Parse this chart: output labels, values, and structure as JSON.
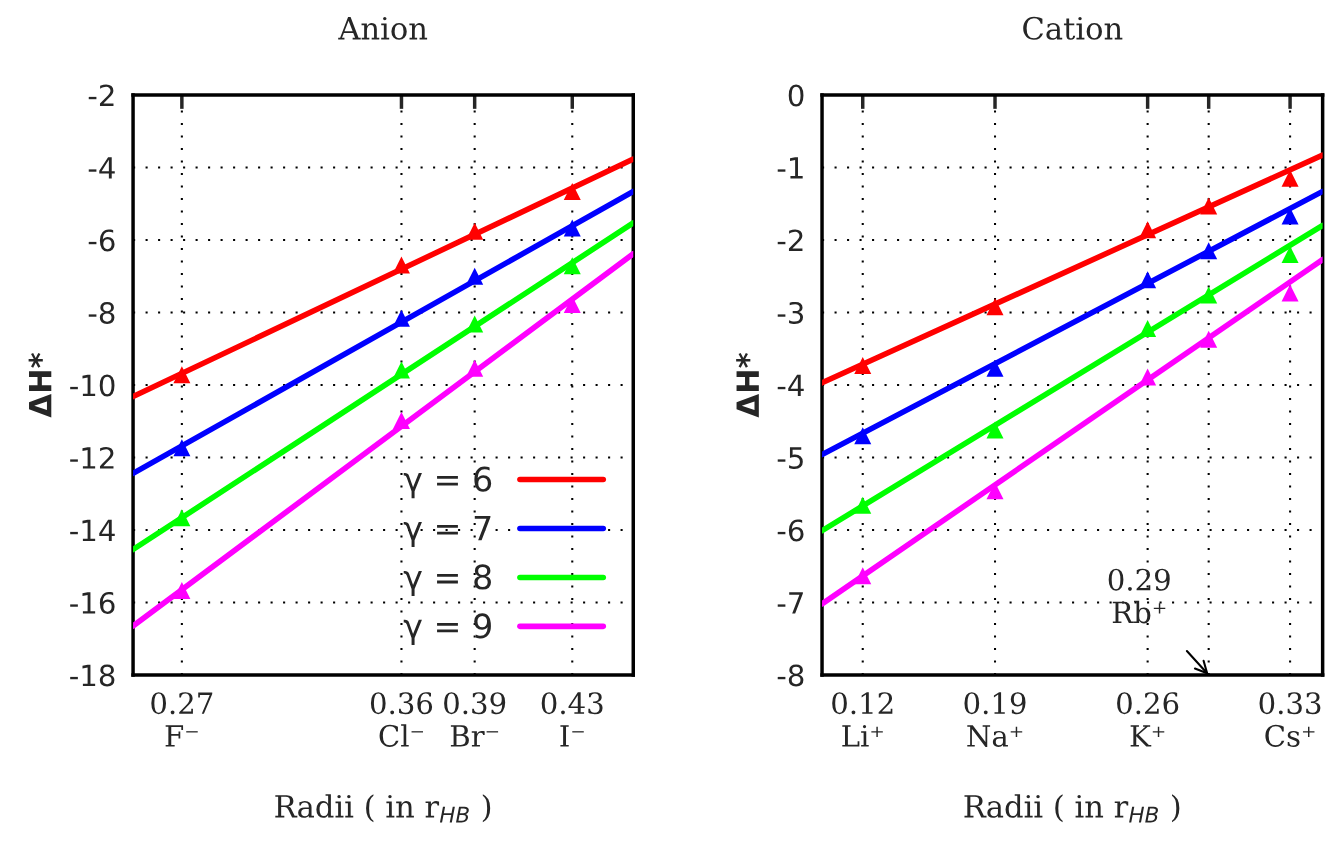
{
  "chart_data": [
    {
      "type": "line",
      "title": "Anion",
      "xlabel": "Radii ( in r$_{HB}$ )",
      "ylabel": "ΔH*",
      "xlim": [
        0.25,
        0.455
      ],
      "xticks": [
        {
          "value": 0.27,
          "label": "0.27\nF⁻"
        },
        {
          "value": 0.36,
          "label": "0.36\nCl⁻"
        },
        {
          "value": 0.39,
          "label": "0.39\nBr⁻"
        },
        {
          "value": 0.43,
          "label": "0.43\nI⁻"
        }
      ],
      "ylim": [
        -18,
        -2
      ],
      "yticks": [
        {
          "value": -18,
          "label": "-18"
        },
        {
          "value": -16,
          "label": "-16"
        },
        {
          "value": -14,
          "label": "-14"
        },
        {
          "value": -12,
          "label": "-12"
        },
        {
          "value": -10,
          "label": "-10"
        },
        {
          "value": -8,
          "label": "-8"
        },
        {
          "value": -6,
          "label": "-6"
        },
        {
          "value": -4,
          "label": "-4"
        },
        {
          "value": -2,
          "label": "-2"
        }
      ],
      "grid": true,
      "legend": "bottom right",
      "series": [
        {
          "type": "scatter",
          "marker": "triangle",
          "color": "#ff0000",
          "x": [
            0.27,
            0.36,
            0.39,
            0.43
          ],
          "values": [
            -9.72,
            -6.69,
            -5.76,
            -4.66
          ]
        },
        {
          "type": "scatter",
          "marker": "triangle",
          "color": "#0000ff",
          "x": [
            0.27,
            0.36,
            0.39,
            0.43
          ],
          "values": [
            -11.73,
            -8.16,
            -7.0,
            -5.67
          ]
        },
        {
          "type": "scatter",
          "marker": "triangle",
          "color": "#00ff00",
          "x": [
            0.27,
            0.36,
            0.39,
            0.43
          ],
          "values": [
            -13.66,
            -9.59,
            -8.32,
            -6.71
          ]
        },
        {
          "type": "scatter",
          "marker": "triangle",
          "color": "#ff00ff",
          "x": [
            0.27,
            0.36,
            0.39,
            0.43
          ],
          "values": [
            -15.67,
            -10.98,
            -9.54,
            -7.78
          ]
        },
        {
          "type": "line",
          "name": "γ = 6",
          "color": "#ff0000",
          "x": [
            0.25,
            0.455
          ],
          "values": [
            -10.32,
            -3.77
          ]
        },
        {
          "type": "line",
          "name": "γ = 7",
          "color": "#0000ff",
          "x": [
            0.25,
            0.455
          ],
          "values": [
            -12.44,
            -4.66
          ]
        },
        {
          "type": "line",
          "name": "γ = 8",
          "color": "#00ff00",
          "x": [
            0.25,
            0.455
          ],
          "values": [
            -14.54,
            -5.53
          ]
        },
        {
          "type": "line",
          "name": "γ = 9",
          "color": "#ff00ff",
          "x": [
            0.25,
            0.455
          ],
          "values": [
            -16.65,
            -6.38
          ]
        }
      ]
    },
    {
      "type": "line",
      "title": "Cation",
      "xlabel": "Radii ( in r$_{HB}$ )",
      "ylabel": "ΔH*",
      "xlim": [
        0.1,
        0.346
      ],
      "xticks": [
        {
          "value": 0.12,
          "label": "0.12\nLi⁺"
        },
        {
          "value": 0.185,
          "label": "0.19\nNa⁺"
        },
        {
          "value": 0.26,
          "label": "0.26\nK⁺"
        },
        {
          "value": 0.29,
          "label": null
        },
        {
          "value": 0.33,
          "label": "0.33\nCs⁺"
        }
      ],
      "ylim": [
        -8,
        0
      ],
      "yticks": [
        {
          "value": -8,
          "label": "-8"
        },
        {
          "value": -7,
          "label": "-7"
        },
        {
          "value": -6,
          "label": "-6"
        },
        {
          "value": -5,
          "label": "-5"
        },
        {
          "value": -4,
          "label": "-4"
        },
        {
          "value": -3,
          "label": "-3"
        },
        {
          "value": -2,
          "label": "-2"
        },
        {
          "value": -1,
          "label": "-1"
        },
        0
      ],
      "grid": true,
      "annotations": [
        "0.29\nRb⁺"
      ],
      "series": [
        {
          "type": "scatter",
          "marker": "triangle",
          "color": "#ff0000",
          "x": [
            0.12,
            0.185,
            0.26,
            0.29,
            0.33
          ],
          "values": [
            -3.73,
            -2.92,
            -1.86,
            -1.53,
            -1.15
          ]
        },
        {
          "type": "scatter",
          "marker": "triangle",
          "color": "#0000ff",
          "x": [
            0.12,
            0.185,
            0.26,
            0.29,
            0.33
          ],
          "values": [
            -4.7,
            -3.77,
            -2.55,
            -2.15,
            -1.67
          ]
        },
        {
          "type": "scatter",
          "marker": "triangle",
          "color": "#00ff00",
          "x": [
            0.12,
            0.185,
            0.26,
            0.29,
            0.33
          ],
          "values": [
            -5.66,
            -4.62,
            -3.22,
            -2.76,
            -2.2
          ]
        },
        {
          "type": "scatter",
          "marker": "triangle",
          "color": "#ff00ff",
          "x": [
            0.12,
            0.185,
            0.26,
            0.29,
            0.33
          ],
          "values": [
            -6.63,
            -5.46,
            -3.89,
            -3.37,
            -2.73
          ]
        },
        {
          "type": "line",
          "color": "#ff0000",
          "x": [
            0.1,
            0.346
          ],
          "values": [
            -3.97,
            -0.83
          ]
        },
        {
          "type": "line",
          "color": "#0000ff",
          "x": [
            0.1,
            0.346
          ],
          "values": [
            -4.96,
            -1.33
          ]
        },
        {
          "type": "line",
          "color": "#00ff00",
          "x": [
            0.1,
            0.346
          ],
          "values": [
            -6.01,
            -1.8
          ]
        },
        {
          "type": "line",
          "color": "#ff00ff",
          "x": [
            0.1,
            0.346
          ],
          "values": [
            -7.02,
            -2.27
          ]
        }
      ]
    }
  ]
}
